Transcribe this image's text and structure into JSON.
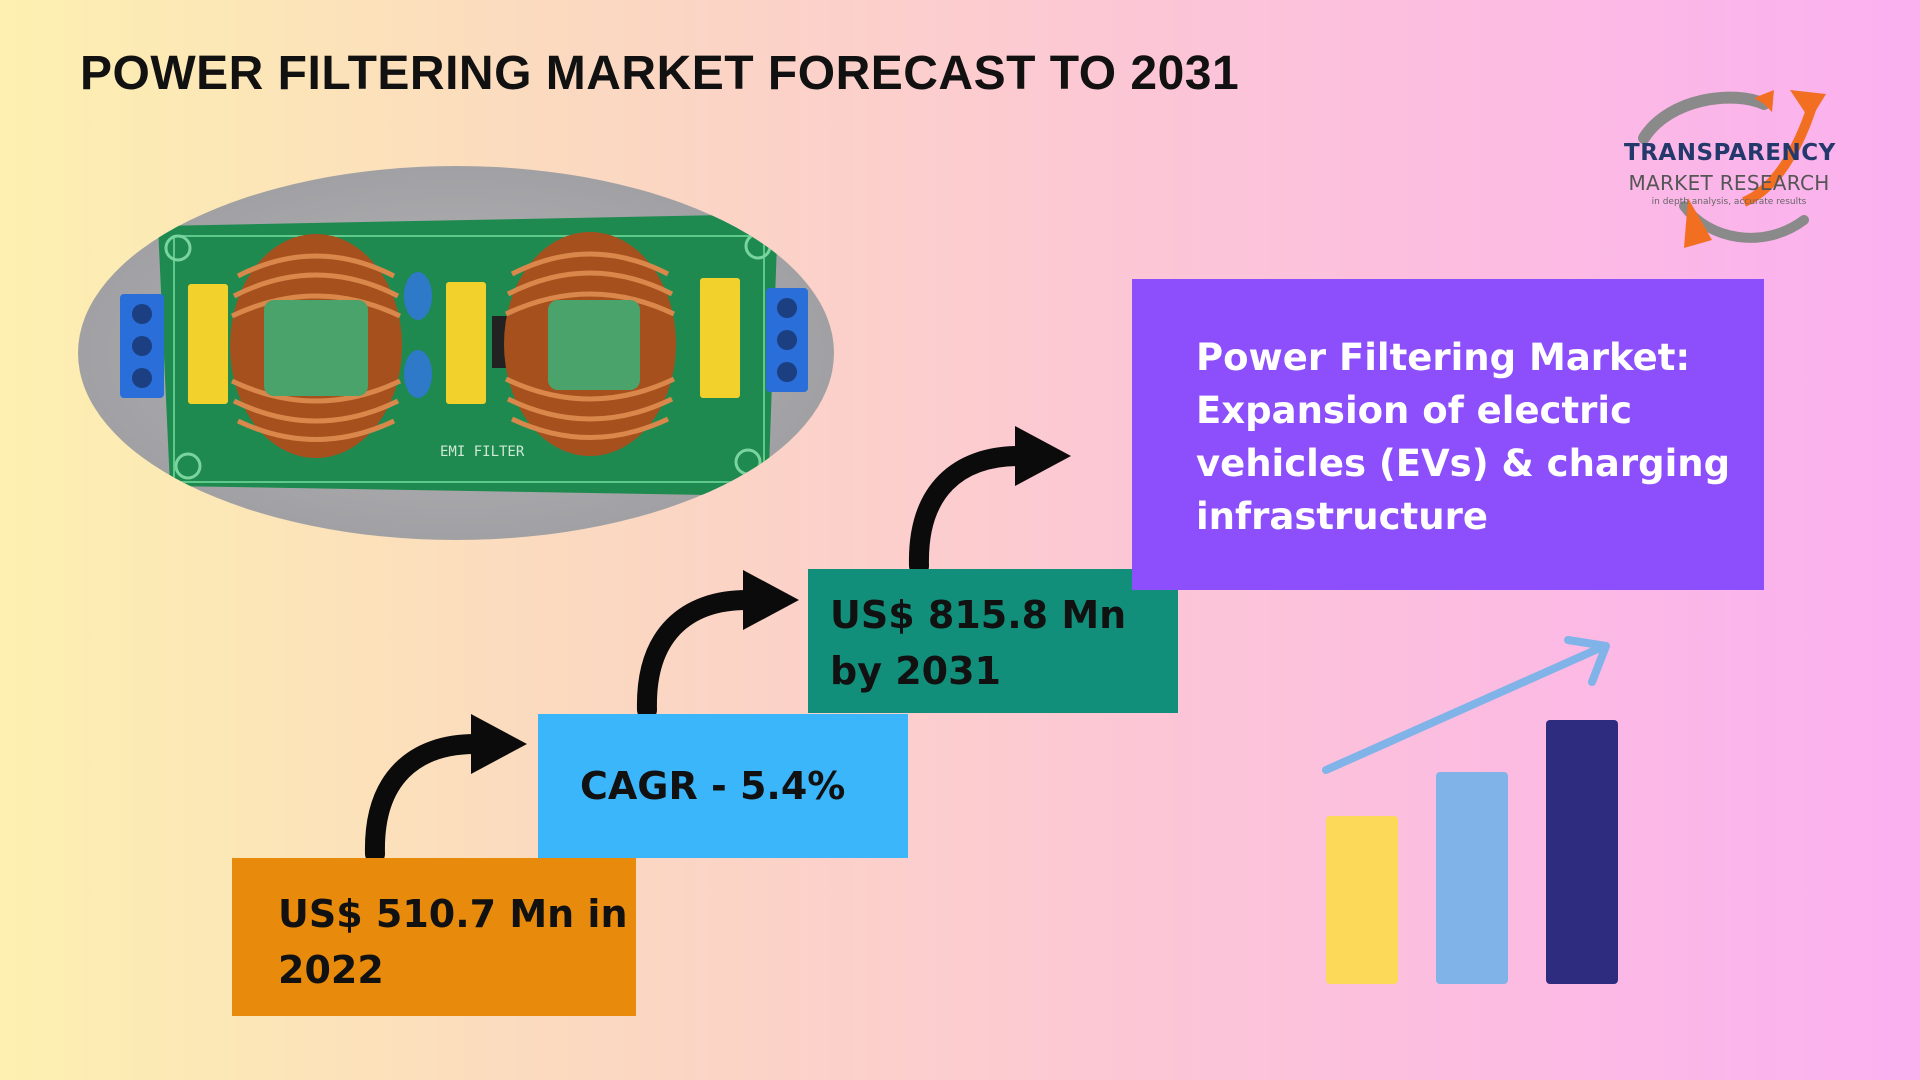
{
  "title": "POWER FILTERING MARKET FORECAST TO 2031",
  "logo": {
    "line1": "TRANSPARENCY",
    "line2": "MARKET RESEARCH",
    "tagline": "in depth analysis, accurate results"
  },
  "photo": {
    "board_label": "EMI FILTER"
  },
  "steps": [
    {
      "line1": "US$ 510.7 Mn in",
      "line2": "2022",
      "color": "#e88b0c"
    },
    {
      "line1": "CAGR - 5.4%",
      "color": "#3cb6fb"
    },
    {
      "line1": "US$ 815.8 Mn",
      "line2": "by 2031",
      "color": "#128f7a"
    }
  ],
  "callout": {
    "lines": [
      "Power Filtering Market:",
      "Expansion of electric",
      "vehicles (EVs) & charging",
      "infrastructure"
    ],
    "color": "#8c4ffb"
  },
  "icons": {
    "step_arrows": "curved-arrow-icon",
    "chart": "growth-bar-chart-icon"
  },
  "colors": {
    "bar1": "#fdd95a",
    "bar2": "#80b3e8",
    "bar3": "#2e2c7e",
    "trend_arrow": "#80b3e8"
  }
}
